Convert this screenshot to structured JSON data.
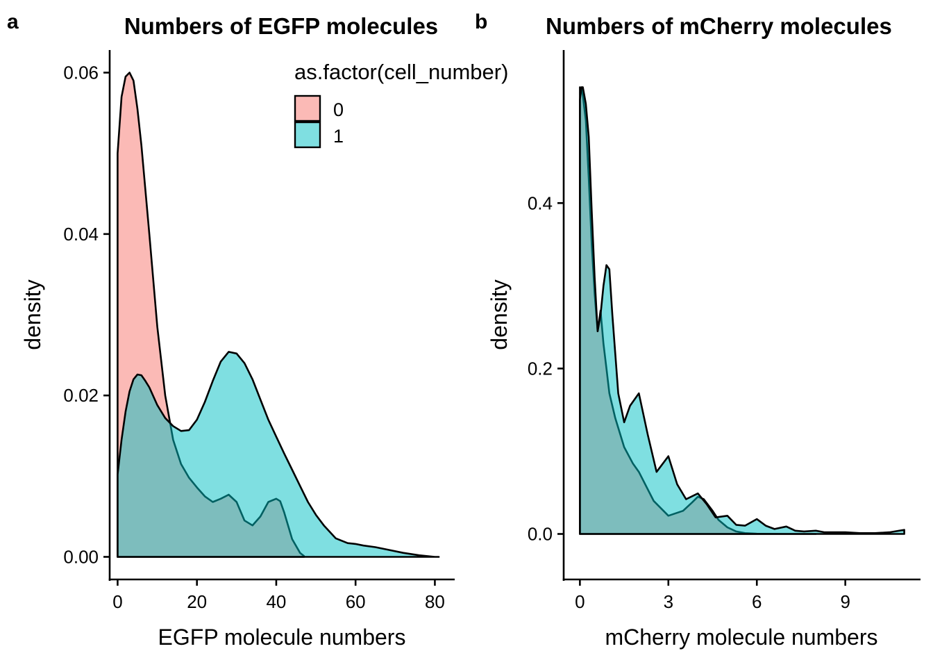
{
  "chart_data": [
    {
      "panel_tag": "a",
      "type": "area",
      "subtype": "density",
      "title": "Numbers of EGFP molecules",
      "xlabel": "EGFP molecule numbers",
      "ylabel": "density",
      "xlim": [
        -2,
        85
      ],
      "ylim": [
        -0.0028,
        0.0628
      ],
      "x_ticks": [
        0,
        20,
        40,
        60,
        80
      ],
      "x_tick_labels": [
        "0",
        "20",
        "40",
        "60",
        "80"
      ],
      "y_ticks": [
        0,
        0.02,
        0.04,
        0.06
      ],
      "y_tick_labels": [
        "0.00",
        "0.02",
        "0.04",
        "0.06"
      ],
      "grid": false,
      "legend": {
        "title": "as.factor(cell_number)",
        "placement": "top-right",
        "entries": [
          "0",
          "1"
        ]
      },
      "series": [
        {
          "name": "0",
          "color": "#F8766D",
          "x": [
            0,
            1,
            2,
            3,
            4,
            5,
            6,
            8,
            10,
            12,
            14,
            16,
            18,
            20,
            22,
            24,
            26,
            28,
            30,
            32,
            34,
            36,
            38,
            40,
            41,
            42,
            44,
            46,
            47
          ],
          "y": [
            0.05,
            0.057,
            0.0595,
            0.06,
            0.059,
            0.0555,
            0.051,
            0.04,
            0.0285,
            0.02,
            0.0145,
            0.0115,
            0.0098,
            0.0086,
            0.0075,
            0.0068,
            0.0072,
            0.0077,
            0.0068,
            0.0045,
            0.0039,
            0.005,
            0.0068,
            0.0072,
            0.0069,
            0.0055,
            0.0022,
            0.0005,
            0.0001
          ]
        },
        {
          "name": "1",
          "color": "#00BFC4",
          "x": [
            0,
            1,
            2,
            3,
            4,
            5,
            6,
            7,
            8,
            10,
            12,
            14,
            16,
            18,
            20,
            22,
            24,
            26,
            28,
            30,
            32,
            34,
            36,
            38,
            40,
            42,
            44,
            46,
            48,
            50,
            52,
            55,
            58,
            60,
            62,
            65,
            68,
            72,
            76,
            80,
            81
          ],
          "y": [
            0.0102,
            0.0145,
            0.018,
            0.0205,
            0.022,
            0.0226,
            0.0225,
            0.0218,
            0.021,
            0.0188,
            0.0172,
            0.0162,
            0.0156,
            0.0157,
            0.017,
            0.0192,
            0.0218,
            0.0242,
            0.0254,
            0.0252,
            0.024,
            0.022,
            0.0195,
            0.017,
            0.0149,
            0.0128,
            0.0108,
            0.0088,
            0.0068,
            0.0052,
            0.0039,
            0.0023,
            0.0017,
            0.0016,
            0.0014,
            0.0012,
            0.0009,
            0.0005,
            0.0002,
            0.0,
            0.0
          ]
        }
      ]
    },
    {
      "panel_tag": "b",
      "type": "area",
      "subtype": "density",
      "title": "Numbers of mCherry molecules",
      "xlabel": "mCherry molecule numbers",
      "ylabel": "density",
      "xlim": [
        -0.55,
        11.55
      ],
      "ylim": [
        -0.055,
        0.585
      ],
      "x_ticks": [
        0,
        3,
        6,
        9
      ],
      "x_tick_labels": [
        "0",
        "3",
        "6",
        "9"
      ],
      "y_ticks": [
        0,
        0.2,
        0.4
      ],
      "y_tick_labels": [
        "0.0",
        "0.2",
        "0.4"
      ],
      "grid": false,
      "legend": null,
      "series": [
        {
          "name": "0",
          "color": "#F8766D",
          "x": [
            0,
            0.05,
            0.1,
            0.2,
            0.3,
            0.4,
            0.5,
            0.6,
            0.7,
            0.8,
            0.9,
            1.0,
            1.2,
            1.5,
            1.8,
            2.0,
            2.5,
            3.0,
            3.5,
            3.8,
            4.0,
            4.2,
            4.5,
            4.7,
            5.0,
            5.3,
            5.6,
            6.0,
            6.5,
            7.0,
            8.0
          ],
          "y": [
            0.54,
            0.538,
            0.53,
            0.5,
            0.43,
            0.35,
            0.29,
            0.245,
            0.27,
            0.23,
            0.2,
            0.17,
            0.14,
            0.105,
            0.085,
            0.075,
            0.04,
            0.022,
            0.028,
            0.038,
            0.045,
            0.042,
            0.028,
            0.017,
            0.008,
            0.003,
            0.001,
            0.0003,
            0.0001,
            0.0,
            0.0
          ]
        },
        {
          "name": "1",
          "color": "#00BFC4",
          "x": [
            0,
            0.05,
            0.1,
            0.2,
            0.3,
            0.4,
            0.5,
            0.6,
            0.7,
            0.8,
            0.9,
            1.0,
            1.1,
            1.3,
            1.5,
            1.7,
            2.0,
            2.3,
            2.6,
            3.0,
            3.3,
            3.6,
            4.0,
            4.3,
            4.6,
            5.0,
            5.3,
            5.6,
            6.0,
            6.3,
            6.6,
            7.0,
            7.3,
            7.6,
            8.0,
            8.3,
            8.6,
            9.0,
            9.5,
            10.0,
            10.5,
            11.0
          ],
          "y": [
            0.525,
            0.54,
            0.54,
            0.52,
            0.48,
            0.39,
            0.31,
            0.245,
            0.265,
            0.3,
            0.325,
            0.32,
            0.265,
            0.17,
            0.135,
            0.155,
            0.17,
            0.12,
            0.075,
            0.094,
            0.06,
            0.042,
            0.049,
            0.036,
            0.02,
            0.022,
            0.011,
            0.01,
            0.018,
            0.01,
            0.006,
            0.009,
            0.004,
            0.003,
            0.004,
            0.002,
            0.002,
            0.002,
            0.001,
            0.001,
            0.002,
            0.005
          ]
        }
      ]
    }
  ]
}
